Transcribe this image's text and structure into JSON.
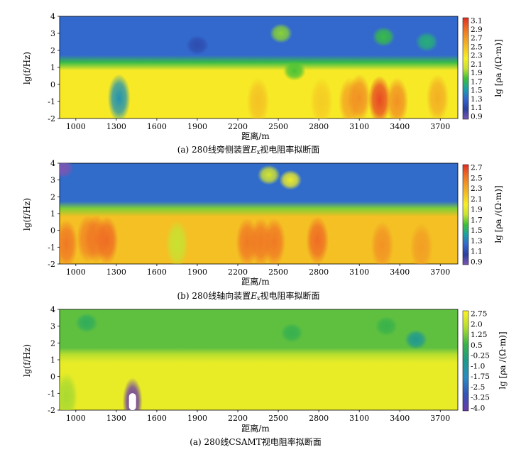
{
  "chart_data": [
    {
      "type": "heatmap",
      "caption": "(a) 280线旁侧装置Ex视电阻率拟断面",
      "caption_parts": {
        "before": "(a) 280线旁侧装置",
        "sym": "E",
        "sub": "x",
        "after": "视电阻率拟断面"
      },
      "xlabel": "距离/m",
      "ylabel": "lg(f/Hz)",
      "colorbar_label": "lg [ρa /(Ω·m)]",
      "xticks": [
        1000,
        1300,
        1600,
        1900,
        2200,
        2500,
        2800,
        3100,
        3400,
        3700
      ],
      "yticks": [
        -2,
        -1,
        0,
        1,
        2,
        3,
        4
      ],
      "xlim": [
        880,
        3830
      ],
      "ylim": [
        -2,
        4
      ],
      "colorbar_ticks": [
        "3.1",
        "2.9",
        "2.7",
        "2.5",
        "2.3",
        "2.1",
        "1.9",
        "1.7",
        "1.5",
        "1.3",
        "1.1",
        "0.9"
      ],
      "value_range": [
        0.9,
        3.1
      ],
      "band_levels": {
        "high_freq": 1.35,
        "transition": 1.75,
        "low_freq": 2.25
      },
      "anomalies": [
        {
          "x": 1320,
          "y": -0.8,
          "value": 1.5
        },
        {
          "x": 1900,
          "y": 2.3,
          "value": 1.2
        },
        {
          "x": 2520,
          "y": 3.0,
          "value": 1.9
        },
        {
          "x": 2620,
          "y": 0.8,
          "value": 1.8
        },
        {
          "x": 3030,
          "y": -1.0,
          "value": 2.6
        },
        {
          "x": 3100,
          "y": -0.8,
          "value": 2.7
        },
        {
          "x": 3250,
          "y": -0.9,
          "value": 3.0
        },
        {
          "x": 3380,
          "y": -1.0,
          "value": 2.7
        },
        {
          "x": 3680,
          "y": -0.8,
          "value": 2.55
        },
        {
          "x": 3280,
          "y": 2.8,
          "value": 1.75
        },
        {
          "x": 3600,
          "y": 2.5,
          "value": 1.65
        },
        {
          "x": 2350,
          "y": -1.0,
          "value": 2.45
        },
        {
          "x": 2820,
          "y": -1.0,
          "value": 2.4
        }
      ]
    },
    {
      "type": "heatmap",
      "caption": "(b) 280线轴向装置Ex视电阻率拟断面",
      "caption_parts": {
        "before": "(b) 280线轴向装置",
        "sym": "E",
        "sub": "x",
        "after": "视电阻率拟断面"
      },
      "xlabel": "距离/m",
      "ylabel": "lg(f/Hz)",
      "colorbar_label": "lg [ρa /(Ω·m)]",
      "xticks": [
        1000,
        1300,
        1600,
        1900,
        2200,
        2500,
        2800,
        3100,
        3400,
        3700
      ],
      "yticks": [
        -2,
        -1,
        0,
        1,
        2,
        3,
        4
      ],
      "xlim": [
        880,
        3830
      ],
      "ylim": [
        -2,
        4
      ],
      "colorbar_ticks": [
        "2.7",
        "2.5",
        "2.3",
        "2.1",
        "1.9",
        "1.7",
        "1.5",
        "1.3",
        "1.1",
        "0.9"
      ],
      "value_range": [
        0.9,
        2.8
      ],
      "band_levels": {
        "high_freq": 1.3,
        "transition": 1.75,
        "low_freq": 2.25
      },
      "anomalies": [
        {
          "x": 930,
          "y": -0.8,
          "value": 2.55
        },
        {
          "x": 1090,
          "y": -0.5,
          "value": 2.5
        },
        {
          "x": 1150,
          "y": -0.5,
          "value": 2.55
        },
        {
          "x": 1230,
          "y": -0.6,
          "value": 2.6
        },
        {
          "x": 900,
          "y": 3.7,
          "value": 0.9
        },
        {
          "x": 2270,
          "y": -0.7,
          "value": 2.55
        },
        {
          "x": 2370,
          "y": -0.7,
          "value": 2.55
        },
        {
          "x": 2470,
          "y": -0.7,
          "value": 2.55
        },
        {
          "x": 2790,
          "y": -0.6,
          "value": 2.6
        },
        {
          "x": 3270,
          "y": -0.9,
          "value": 2.45
        },
        {
          "x": 3560,
          "y": -1.0,
          "value": 2.4
        },
        {
          "x": 2430,
          "y": 3.3,
          "value": 1.9
        },
        {
          "x": 2590,
          "y": 3.0,
          "value": 2.0
        },
        {
          "x": 1750,
          "y": -0.8,
          "value": 1.85
        }
      ]
    },
    {
      "type": "heatmap",
      "caption": "(a) 280线CSAMT视电阻率拟断面",
      "xlabel": "距离/m",
      "ylabel": "lg(f/Hz)",
      "colorbar_label": "lg [ρa /(Ω·m)]",
      "xticks": [
        1000,
        1300,
        1600,
        1900,
        2200,
        2500,
        2800,
        3100,
        3400,
        3700
      ],
      "yticks": [
        -2,
        -1,
        0,
        1,
        2,
        3,
        4
      ],
      "xlim": [
        880,
        3830
      ],
      "ylim": [
        -2,
        4
      ],
      "colorbar_ticks": [
        "2.75",
        "2.0",
        "1.25",
        "0.5",
        "-0.25",
        "-1.0",
        "-1.75",
        "-2.5",
        "-3.25",
        "-4.0"
      ],
      "value_range": [
        -4.0,
        3.1
      ],
      "band_levels": {
        "high_freq": 1.1,
        "transition": 2.0,
        "low_freq": 2.75
      },
      "anomalies": [
        {
          "x": 1420,
          "y": -1.5,
          "value": -4.0
        },
        {
          "x": 3520,
          "y": 2.2,
          "value": -0.6
        },
        {
          "x": 930,
          "y": -1.2,
          "value": 1.8
        },
        {
          "x": 1080,
          "y": 3.2,
          "value": 0.4
        },
        {
          "x": 2600,
          "y": 2.6,
          "value": 0.6
        },
        {
          "x": 3300,
          "y": 3.0,
          "value": 0.7
        }
      ]
    }
  ],
  "colors": {
    "map1_scale": [
      "#7b56b2",
      "#2b3f9e",
      "#3466cf",
      "#1aa2a6",
      "#3cbf38",
      "#c8e232",
      "#f7ef26",
      "#f4c424",
      "#f29a24",
      "#ef6a24",
      "#e12e22"
    ],
    "map3_scale": [
      "#6a3aa8",
      "#3354b8",
      "#2b8bc2",
      "#1e9a8a",
      "#39b348",
      "#b5dd2f",
      "#fdf224"
    ]
  }
}
